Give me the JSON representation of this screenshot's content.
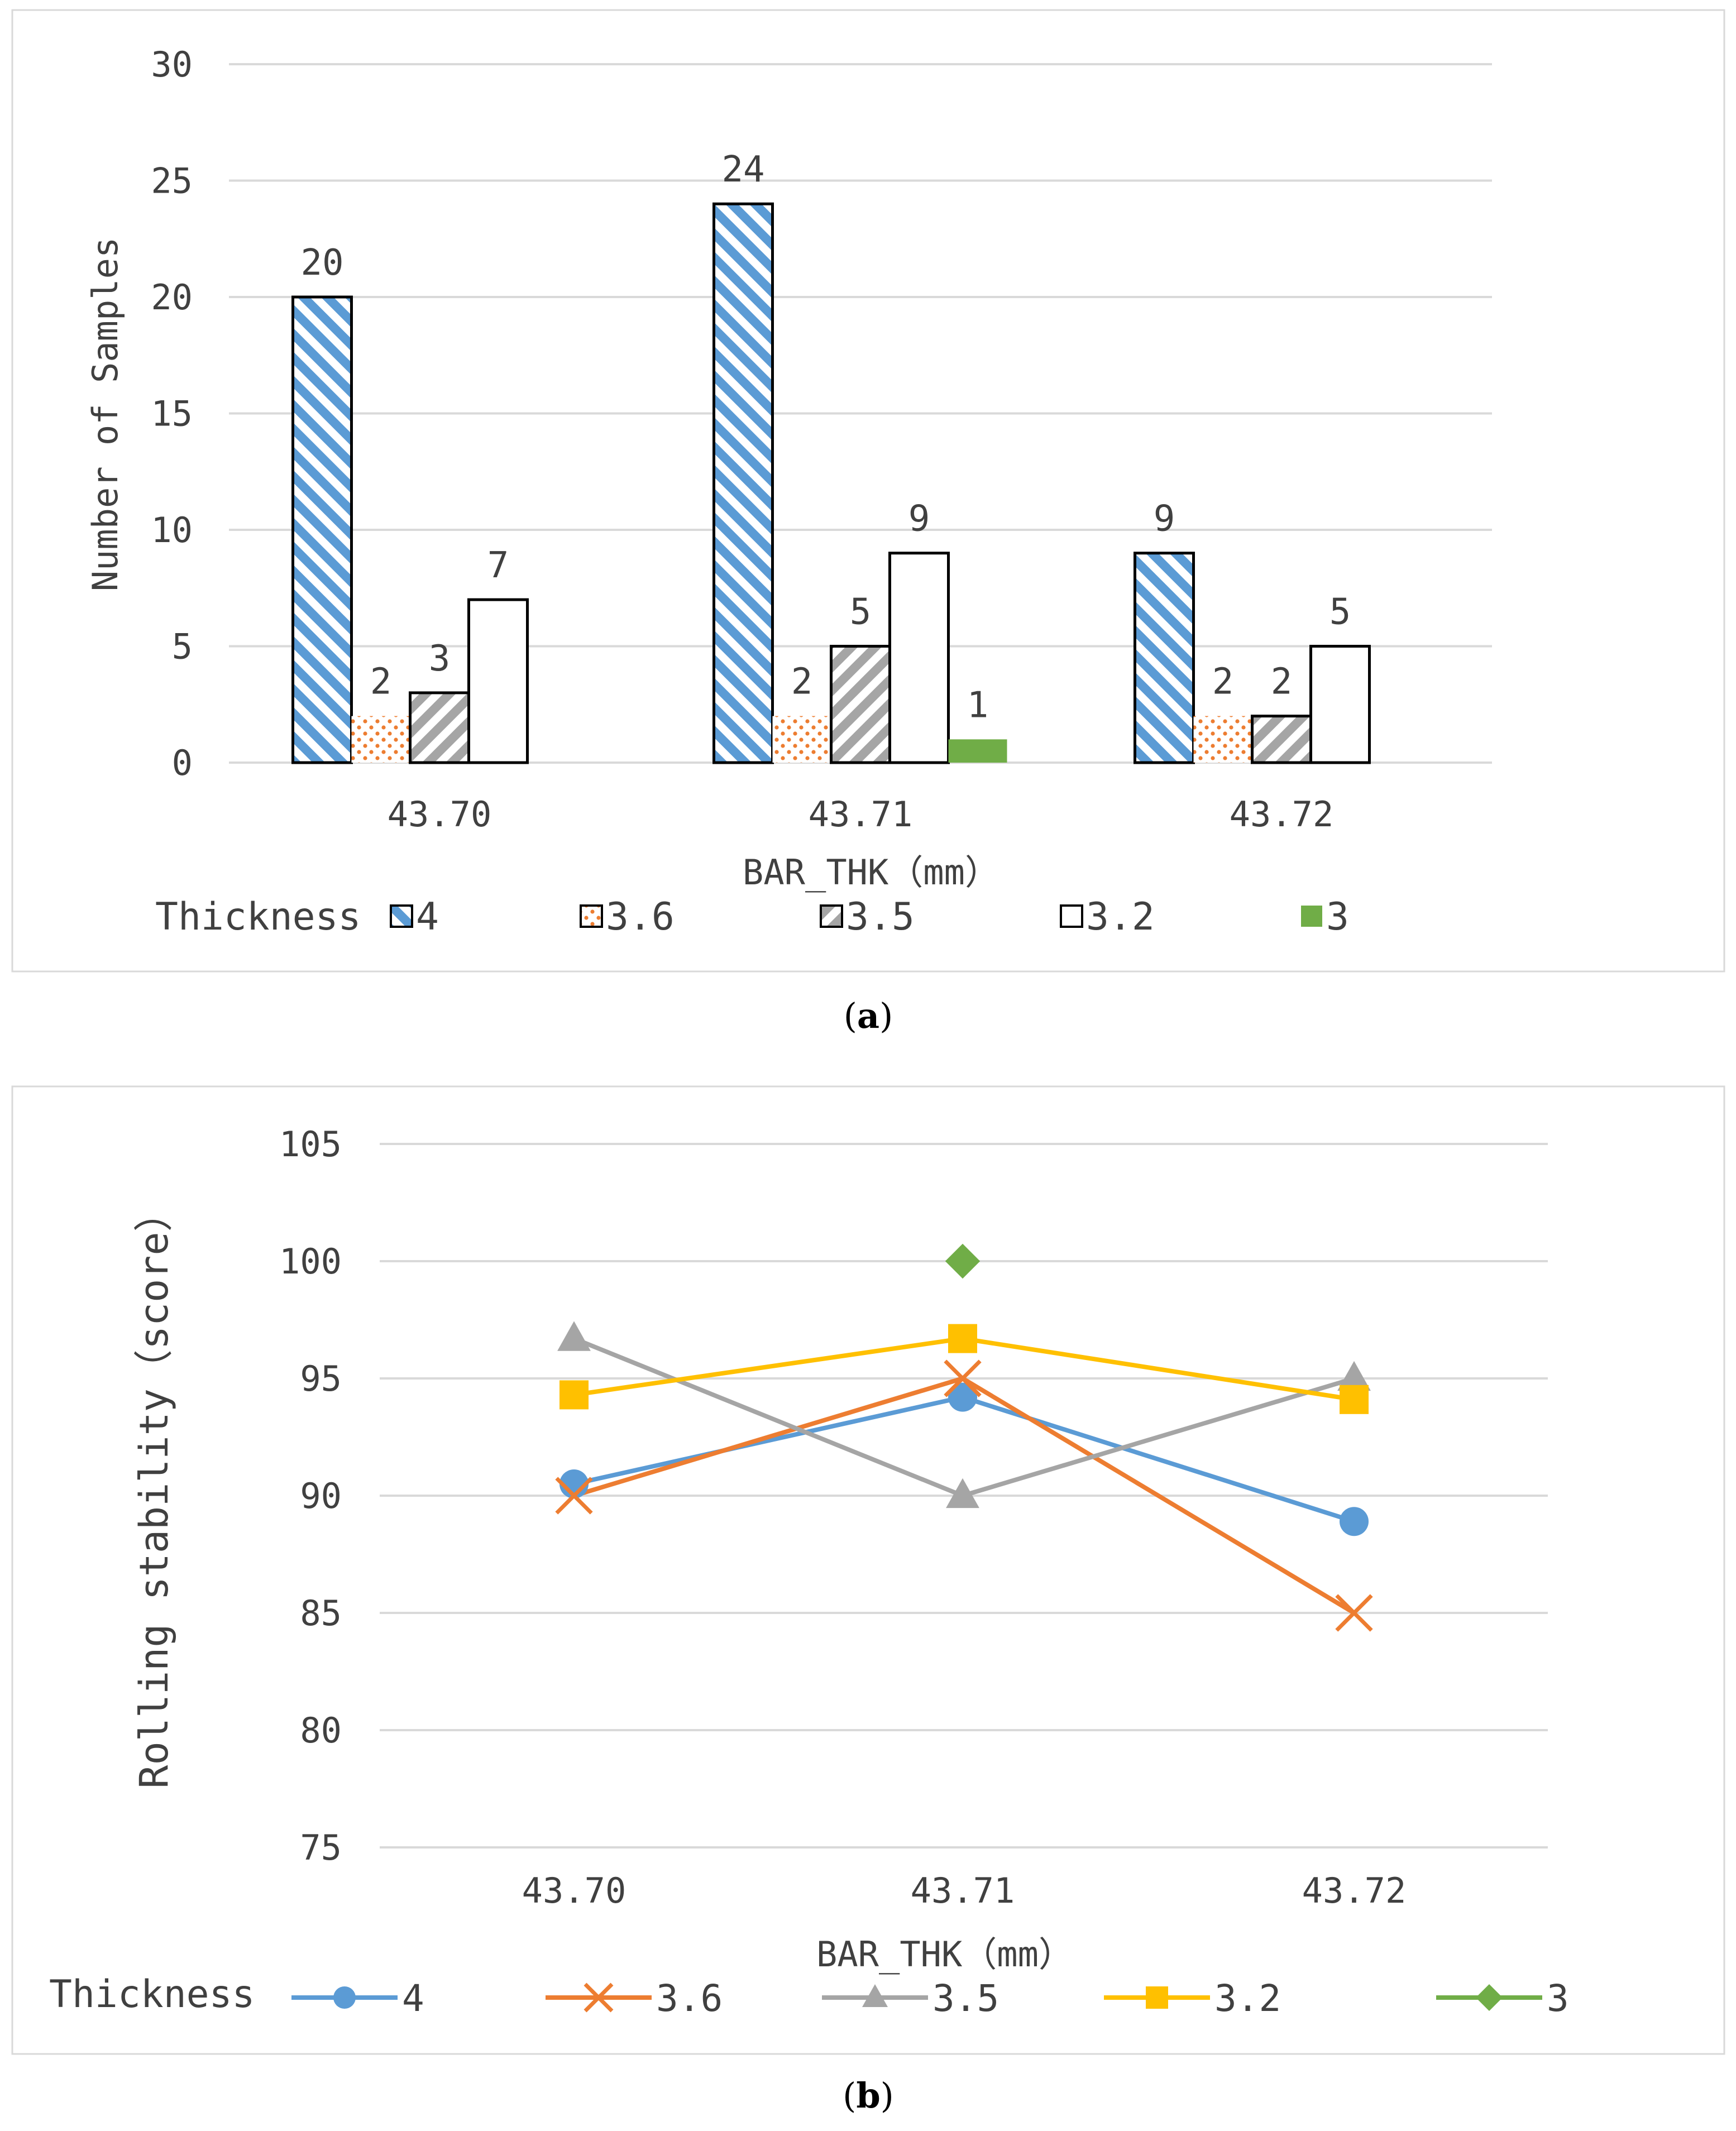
{
  "chart_data": [
    {
      "type": "bar",
      "caption_letter": "a",
      "categories": [
        "43.70",
        "43.71",
        "43.72"
      ],
      "series": [
        {
          "name": "4",
          "values": [
            20,
            24,
            9
          ],
          "color": "#5b9bd5",
          "pattern": "diagonal-stripes"
        },
        {
          "name": "3.6",
          "values": [
            2,
            2,
            2
          ],
          "color": "#ed7d31",
          "pattern": "dots"
        },
        {
          "name": "3.5",
          "values": [
            3,
            5,
            2
          ],
          "color": "#a5a5a5",
          "pattern": "diagonal-stripes"
        },
        {
          "name": "3.2",
          "values": [
            7,
            9,
            5
          ],
          "color": "#ffffff",
          "pattern": "none"
        },
        {
          "name": "3",
          "values": [
            null,
            1,
            null
          ],
          "color": "#70ad47",
          "pattern": "solid"
        }
      ],
      "xlabel": "BAR_THK（mm）",
      "ylabel": "Number of Samples",
      "ylim": [
        0,
        30
      ],
      "yticks": [
        0,
        5,
        10,
        15,
        20,
        25,
        30
      ],
      "legend_title": "Thickness",
      "legend_position": "bottom",
      "grid": true
    },
    {
      "type": "line",
      "caption_letter": "b",
      "categories": [
        "43.70",
        "43.71",
        "43.72"
      ],
      "series": [
        {
          "name": "4",
          "values": [
            90.5,
            94.2,
            88.9
          ],
          "color": "#5b9bd5",
          "marker": "circle"
        },
        {
          "name": "3.6",
          "values": [
            90,
            95,
            85
          ],
          "color": "#ed7d31",
          "marker": "x"
        },
        {
          "name": "3.5",
          "values": [
            96.7,
            90,
            95
          ],
          "color": "#a5a5a5",
          "marker": "triangle"
        },
        {
          "name": "3.2",
          "values": [
            94.3,
            96.7,
            94.1
          ],
          "color": "#ffc000",
          "marker": "square"
        },
        {
          "name": "3",
          "values": [
            null,
            100,
            null
          ],
          "color": "#70ad47",
          "marker": "diamond"
        }
      ],
      "xlabel": "BAR_THK（mm）",
      "ylabel": "Rolling stability（score）",
      "ylim": [
        75,
        105
      ],
      "yticks": [
        75,
        80,
        85,
        90,
        95,
        100,
        105
      ],
      "legend_title": "Thickness",
      "legend_position": "bottom",
      "grid": true
    }
  ]
}
